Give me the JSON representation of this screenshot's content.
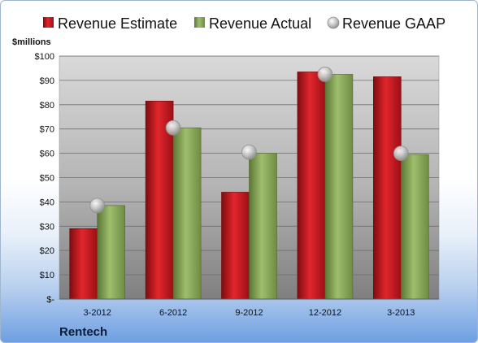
{
  "chart_data": {
    "type": "bar",
    "categories": [
      "3-2012",
      "6-2012",
      "9-2012",
      "12-2012",
      "3-2013"
    ],
    "series": [
      {
        "name": "Revenue Estimate",
        "kind": "bar",
        "color": "#c0161d",
        "values": [
          29,
          81.5,
          44,
          93.5,
          91.5
        ]
      },
      {
        "name": "Revenue Actual",
        "kind": "bar",
        "color": "#8aa95a",
        "values": [
          38.5,
          70.5,
          60,
          92.5,
          59.5
        ]
      },
      {
        "name": "Revenue GAAP",
        "kind": "marker",
        "color": "#b8b8b8",
        "values": [
          38.5,
          70.5,
          60.5,
          92.5,
          60
        ]
      }
    ],
    "ylabel": "$millions",
    "ylim": [
      0,
      100
    ],
    "yticks": [
      "$-",
      "$10",
      "$20",
      "$30",
      "$40",
      "$50",
      "$60",
      "$70",
      "$80",
      "$90",
      "$100"
    ],
    "grid": true,
    "legend": "top"
  },
  "company": "Rentech"
}
